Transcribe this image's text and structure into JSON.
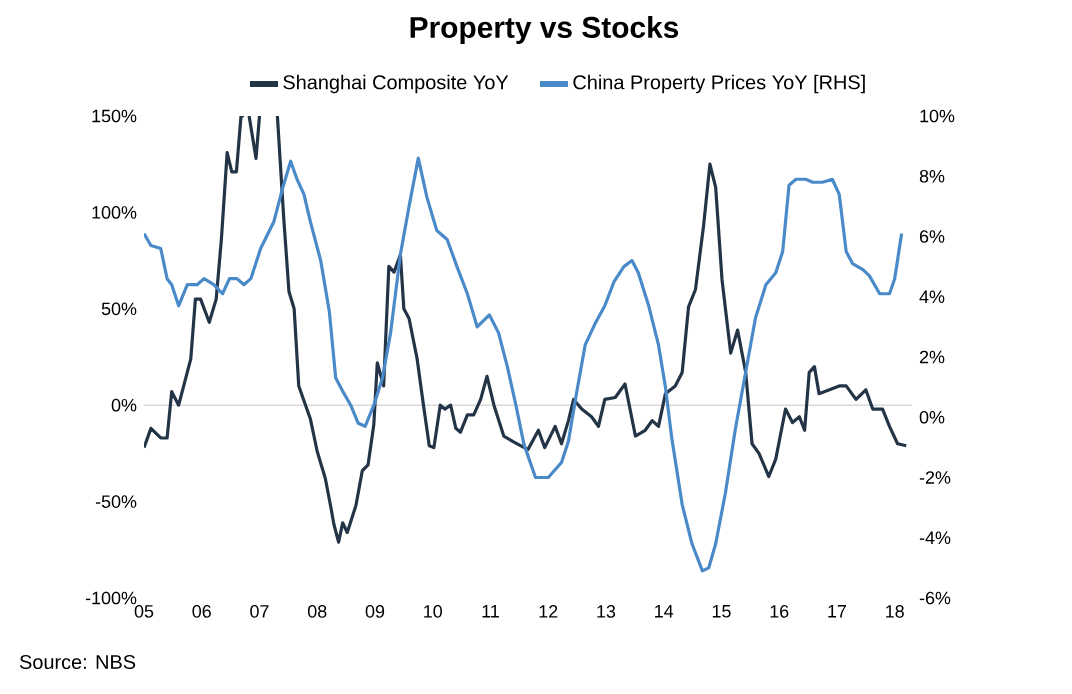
{
  "chart_data": {
    "type": "line",
    "title": "Property vs Stocks",
    "annotations": [
      "Source: NBS"
    ],
    "xlim": [
      2005,
      2018.3
    ],
    "xticks": [
      {
        "value": 2005,
        "label": "05"
      },
      {
        "value": 2006,
        "label": "06"
      },
      {
        "value": 2007,
        "label": "07"
      },
      {
        "value": 2008,
        "label": "08"
      },
      {
        "value": 2009,
        "label": "09"
      },
      {
        "value": 2010,
        "label": "10"
      },
      {
        "value": 2011,
        "label": "11"
      },
      {
        "value": 2012,
        "label": "12"
      },
      {
        "value": 2013,
        "label": "13"
      },
      {
        "value": 2014,
        "label": "14"
      },
      {
        "value": 2015,
        "label": "15"
      },
      {
        "value": 2016,
        "label": "16"
      },
      {
        "value": 2017,
        "label": "17"
      },
      {
        "value": 2018,
        "label": "18"
      }
    ],
    "ylim": [
      -100,
      150
    ],
    "yticks": [
      {
        "value": -100,
        "label": "-100%"
      },
      {
        "value": -50,
        "label": "-50%"
      },
      {
        "value": 0,
        "label": "0%"
      },
      {
        "value": 50,
        "label": "50%"
      },
      {
        "value": 100,
        "label": "100%"
      },
      {
        "value": 150,
        "label": "150%"
      }
    ],
    "y2lim": [
      -6,
      10
    ],
    "y2ticks": [
      {
        "value": -6,
        "label": "-6%"
      },
      {
        "value": -4,
        "label": "-4%"
      },
      {
        "value": -2,
        "label": "-2%"
      },
      {
        "value": 0,
        "label": "0%"
      },
      {
        "value": 2,
        "label": "2%"
      },
      {
        "value": 4,
        "label": "4%"
      },
      {
        "value": 6,
        "label": "6%"
      },
      {
        "value": 8,
        "label": "8%"
      },
      {
        "value": 10,
        "label": "10%"
      }
    ],
    "ref_lines": [
      {
        "axis": "y",
        "value": 0,
        "color": "#d9d9d9"
      }
    ],
    "legend": "top",
    "series": [
      {
        "name": "Shanghai Composite YoY",
        "color": "#243447",
        "x": [
          2005.0,
          2005.12,
          2005.29,
          2005.4,
          2005.48,
          2005.6,
          2005.81,
          2005.89,
          2005.98,
          2006.13,
          2006.25,
          2006.34,
          2006.44,
          2006.52,
          2006.6,
          2006.68,
          2006.73,
          2006.78,
          2006.82,
          2006.94,
          2007.0,
          2007.15,
          2007.31,
          2007.42,
          2007.51,
          2007.6,
          2007.68,
          2007.88,
          2008.0,
          2008.14,
          2008.23,
          2008.29,
          2008.37,
          2008.44,
          2008.52,
          2008.67,
          2008.78,
          2008.88,
          2008.98,
          2009.04,
          2009.15,
          2009.24,
          2009.33,
          2009.44,
          2009.5,
          2009.59,
          2009.73,
          2009.84,
          2009.94,
          2010.02,
          2010.13,
          2010.21,
          2010.31,
          2010.4,
          2010.48,
          2010.6,
          2010.71,
          2010.83,
          2010.94,
          2011.06,
          2011.23,
          2011.4,
          2011.52,
          2011.65,
          2011.83,
          2011.94,
          2012.12,
          2012.23,
          2012.35,
          2012.44,
          2012.58,
          2012.75,
          2012.87,
          2012.98,
          2013.16,
          2013.33,
          2013.51,
          2013.68,
          2013.8,
          2013.91,
          2014.03,
          2014.2,
          2014.32,
          2014.43,
          2014.55,
          2014.69,
          2014.8,
          2014.9,
          2015.01,
          2015.16,
          2015.28,
          2015.42,
          2015.53,
          2015.65,
          2015.82,
          2015.94,
          2016.11,
          2016.23,
          2016.35,
          2016.44,
          2016.52,
          2016.61,
          2016.69,
          2016.87,
          2017.04,
          2017.16,
          2017.33,
          2017.5,
          2017.62,
          2017.79,
          2017.91,
          2018.05,
          2018.2
        ],
        "values": [
          -22,
          -12,
          -17,
          -17,
          7,
          0,
          24,
          55,
          55,
          43,
          55,
          86,
          131,
          121,
          121,
          150,
          150,
          null,
          150,
          128,
          150,
          null,
          150,
          97,
          59,
          50,
          10,
          -7,
          -24,
          -38,
          -52,
          -62,
          -71,
          -61,
          -66,
          -52,
          -34,
          -31,
          -10,
          22,
          10,
          72,
          69,
          78,
          50,
          45,
          24,
          0,
          -21,
          -22,
          0,
          -2,
          0,
          -12,
          -14,
          -5,
          -5,
          3,
          15,
          0,
          -16,
          -19,
          -21,
          -23,
          -13,
          -22,
          -11,
          -20,
          -8,
          3,
          -2,
          -6,
          -11,
          3,
          4,
          11,
          -16,
          -13,
          -8,
          -11,
          6,
          10,
          17,
          51,
          60,
          93,
          125,
          113,
          65,
          27,
          39,
          17,
          -20,
          -25,
          -37,
          -28,
          -2,
          -9,
          -6,
          -13,
          17,
          20,
          6,
          8,
          10,
          10,
          3,
          8,
          -2,
          -2,
          -11,
          -20,
          -21
        ]
      },
      {
        "name": "China Property Prices YoY [RHS]",
        "color": "#4a8ac8",
        "axis": "y2",
        "x": [
          2005.0,
          2005.12,
          2005.29,
          2005.4,
          2005.48,
          2005.6,
          2005.75,
          2005.92,
          2006.04,
          2006.21,
          2006.36,
          2006.48,
          2006.61,
          2006.73,
          2006.85,
          2007.02,
          2007.25,
          2007.4,
          2007.54,
          2007.65,
          2007.77,
          2007.88,
          2008.06,
          2008.21,
          2008.32,
          2008.46,
          2008.58,
          2008.71,
          2008.83,
          2008.98,
          2009.13,
          2009.27,
          2009.44,
          2009.59,
          2009.75,
          2009.9,
          2010.07,
          2010.25,
          2010.42,
          2010.6,
          2010.77,
          2010.98,
          2011.14,
          2011.29,
          2011.44,
          2011.58,
          2011.78,
          2012.0,
          2012.23,
          2012.35,
          2012.49,
          2012.64,
          2012.81,
          2012.98,
          2013.14,
          2013.31,
          2013.45,
          2013.56,
          2013.74,
          2013.91,
          2014.03,
          2014.14,
          2014.32,
          2014.49,
          2014.67,
          2014.78,
          2014.9,
          2015.07,
          2015.24,
          2015.42,
          2015.59,
          2015.77,
          2015.94,
          2016.06,
          2016.17,
          2016.29,
          2016.46,
          2016.58,
          2016.75,
          2016.92,
          2017.04,
          2017.16,
          2017.27,
          2017.45,
          2017.56,
          2017.74,
          2017.91,
          2018.0,
          2018.12
        ],
        "values": [
          6.1,
          5.7,
          5.6,
          4.6,
          4.4,
          3.7,
          4.4,
          4.4,
          4.6,
          4.4,
          4.1,
          4.6,
          4.6,
          4.4,
          4.6,
          5.6,
          6.5,
          7.6,
          8.5,
          7.9,
          7.4,
          6.5,
          5.2,
          3.5,
          1.3,
          0.8,
          0.4,
          -0.2,
          -0.3,
          0.4,
          1.3,
          2.8,
          5.4,
          7.0,
          8.6,
          7.3,
          6.2,
          5.9,
          5.0,
          4.1,
          3.0,
          3.4,
          2.8,
          1.7,
          0.4,
          -0.9,
          -2.0,
          -2.0,
          -1.5,
          -0.8,
          0.8,
          2.4,
          3.1,
          3.7,
          4.5,
          5.0,
          5.2,
          4.8,
          3.7,
          2.4,
          1.0,
          -0.7,
          -2.9,
          -4.2,
          -5.1,
          -5.0,
          -4.2,
          -2.5,
          -0.4,
          1.5,
          3.3,
          4.4,
          4.8,
          5.5,
          7.7,
          7.9,
          7.9,
          7.8,
          7.8,
          7.9,
          7.4,
          5.5,
          5.1,
          4.9,
          4.7,
          4.1,
          4.1,
          4.6,
          6.1
        ]
      }
    ]
  }
}
